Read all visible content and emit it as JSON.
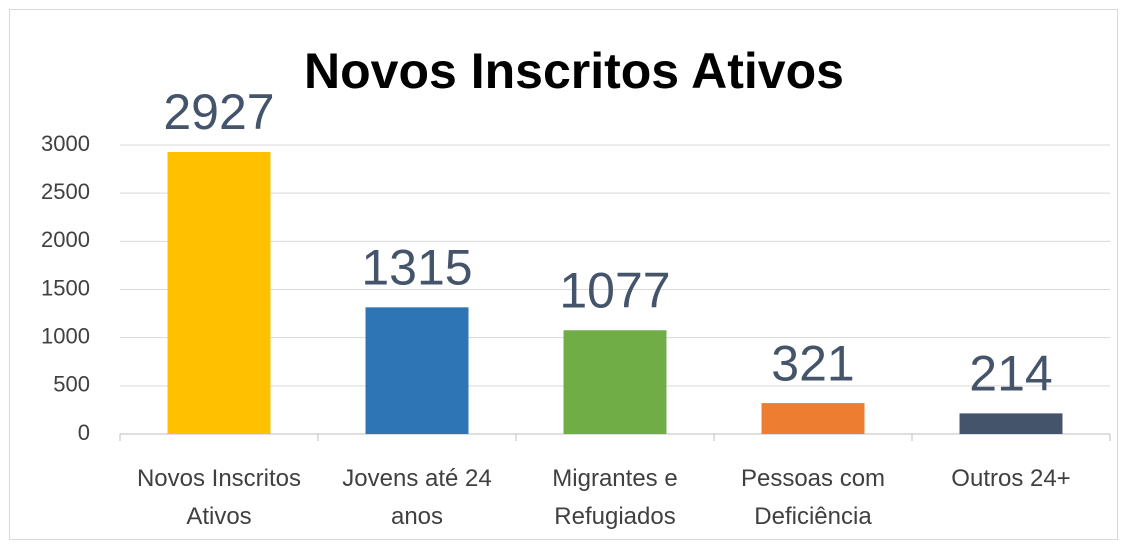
{
  "chart_data": {
    "type": "bar",
    "title": "Novos Inscritos Ativos",
    "categories": [
      "Novos Inscritos Ativos",
      "Jovens até 24 anos",
      "Migrantes e Refugiados",
      "Pessoas com Deficiência",
      "Outros 24+"
    ],
    "values": [
      2927,
      1315,
      1077,
      321,
      214
    ],
    "colors": [
      "#ffc000",
      "#2e75b6",
      "#70ad47",
      "#ed7d31",
      "#44546a"
    ],
    "ylim": [
      0,
      3000
    ],
    "yticks": [
      0,
      500,
      1000,
      1500,
      2000,
      2500,
      3000
    ],
    "grid": true
  }
}
